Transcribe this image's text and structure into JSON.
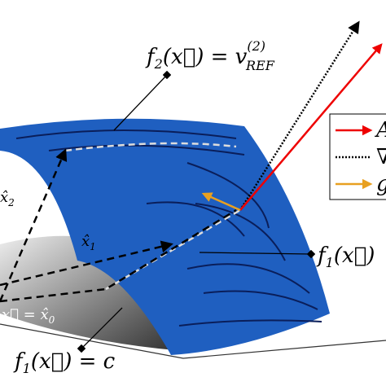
{
  "labels": {
    "f2_ref": {
      "f": "f",
      "sub": "2",
      "arg": "(x⃗) = v",
      "sup": "(2)",
      "ref": "REF"
    },
    "f1": {
      "f": "f",
      "sub": "1",
      "arg": "(x⃗)"
    },
    "f1_c": {
      "f": "f",
      "sub": "1",
      "arg": "(x⃗) = c"
    },
    "x1": {
      "x": "x̂",
      "sub": "1"
    },
    "x2": {
      "x": "x̂",
      "sub": "2"
    },
    "x0": {
      "x": "x⃗ = x̂",
      "sub": "0"
    }
  },
  "legend": [
    "A",
    "∇",
    "g"
  ]
}
